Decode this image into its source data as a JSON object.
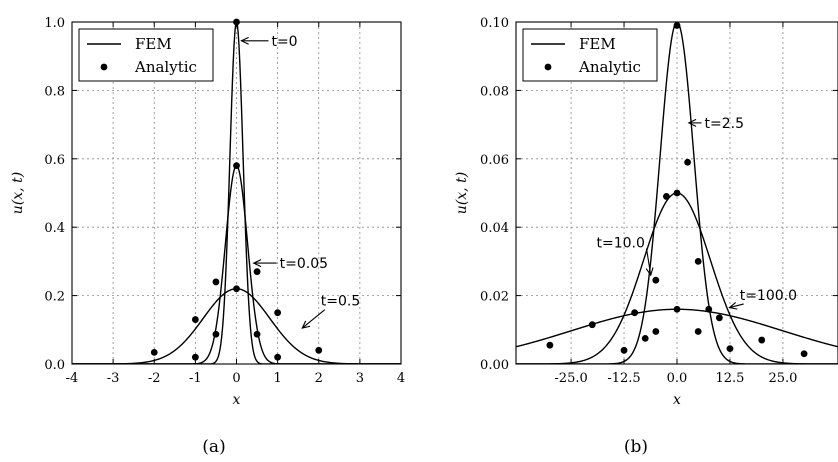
{
  "chart_data": [
    {
      "type": "line",
      "panel": "(a)",
      "xlabel": "x",
      "ylabel": "u(x, t)",
      "xlim": [
        -4,
        4
      ],
      "ylim": [
        0,
        1.0
      ],
      "xticks": [
        -4,
        -3,
        -2,
        -1,
        0,
        1,
        2,
        3,
        4
      ],
      "xtick_labels": [
        "-4",
        "-3",
        "-2",
        "-1",
        "0",
        "1",
        "2",
        "3",
        "4"
      ],
      "yticks": [
        0,
        0.2,
        0.4,
        0.6,
        0.8,
        1.0
      ],
      "ytick_labels": [
        "0.0",
        "0.2",
        "0.4",
        "0.6",
        "0.8",
        "1.0"
      ],
      "grid": true,
      "legend_position": "top-left",
      "legend": [
        {
          "label": "FEM",
          "marker": "line"
        },
        {
          "label": "Analytic",
          "marker": "dot"
        }
      ],
      "series": [
        {
          "label": "t=0",
          "kind": "gaussian",
          "amplitude": 1.0,
          "sigma": 0.16,
          "points": [
            [
              0,
              1.0
            ]
          ]
        },
        {
          "label": "t=0.05",
          "kind": "gaussian",
          "amplitude": 0.58,
          "sigma": 0.27,
          "points": [
            [
              -1,
              0.02
            ],
            [
              -0.5,
              0.087
            ],
            [
              0,
              0.58
            ],
            [
              0.5,
              0.087
            ],
            [
              1,
              0.02
            ]
          ]
        },
        {
          "label": "t=0.5",
          "kind": "gaussian",
          "amplitude": 0.22,
          "sigma": 0.81,
          "points": [
            [
              -2,
              0.034
            ],
            [
              -1,
              0.13
            ],
            [
              -0.5,
              0.24
            ],
            [
              0,
              0.22
            ],
            [
              0.5,
              0.27
            ],
            [
              1,
              0.15
            ],
            [
              2,
              0.04
            ]
          ]
        }
      ],
      "annotations": [
        {
          "text": "t=0",
          "x": 0.85,
          "y": 0.945,
          "arrow_to": [
            0.12,
            0.945
          ]
        },
        {
          "text": "t=0.05",
          "x": 1.05,
          "y": 0.295,
          "arrow_to": [
            0.42,
            0.295
          ]
        },
        {
          "text": "t=0.5",
          "x": 2.05,
          "y": 0.185,
          "arrow_to": [
            1.6,
            0.105
          ]
        }
      ]
    },
    {
      "type": "line",
      "panel": "(b)",
      "xlabel": "x",
      "ylabel": "u(x, t)",
      "xlim": [
        -38,
        38
      ],
      "ylim": [
        0,
        0.1
      ],
      "xticks": [
        -25,
        -12.5,
        0,
        12.5,
        25
      ],
      "xtick_labels": [
        "-25.0",
        "-12.5",
        "0.0",
        "12.5",
        "25.0"
      ],
      "yticks": [
        0,
        0.02,
        0.04,
        0.06,
        0.08,
        0.1
      ],
      "ytick_labels": [
        "0.00",
        "0.02",
        "0.04",
        "0.06",
        "0.08",
        "0.10"
      ],
      "grid": true,
      "legend_position": "top-left",
      "legend": [
        {
          "label": "FEM",
          "marker": "line"
        },
        {
          "label": "Analytic",
          "marker": "dot"
        }
      ],
      "series": [
        {
          "label": "t=2.5",
          "kind": "gaussian",
          "amplitude": 0.1,
          "sigma": 4.0,
          "points": [
            [
              -2.5,
              0.049
            ],
            [
              0,
              0.099
            ],
            [
              2.5,
              0.059
            ],
            [
              5,
              0.0095
            ],
            [
              -5,
              0.0095
            ]
          ]
        },
        {
          "label": "t=10.0",
          "kind": "gaussian",
          "amplitude": 0.05,
          "sigma": 7.9,
          "points": [
            [
              -12.5,
              0.004
            ],
            [
              -7.5,
              0.0075
            ],
            [
              -5,
              0.0245
            ],
            [
              0,
              0.05
            ],
            [
              5,
              0.03
            ],
            [
              7.5,
              0.016
            ],
            [
              12.5,
              0.0045
            ]
          ]
        },
        {
          "label": "t=100.0",
          "kind": "gaussian",
          "amplitude": 0.016,
          "sigma": 25.0,
          "points": [
            [
              -30,
              0.0055
            ],
            [
              -20,
              0.0115
            ],
            [
              -10,
              0.015
            ],
            [
              0,
              0.016
            ],
            [
              10,
              0.0135
            ],
            [
              20,
              0.007
            ],
            [
              30,
              0.003
            ]
          ]
        }
      ],
      "annotations": [
        {
          "text": "t=2.5",
          "x": 6.5,
          "y": 0.0705,
          "arrow_to": [
            2.8,
            0.0705
          ]
        },
        {
          "text": "t=10.0",
          "x": -19,
          "y": 0.0355,
          "arrow_to": [
            -6.2,
            0.026
          ]
        },
        {
          "text": "t=100.0",
          "x": 14.8,
          "y": 0.0202,
          "arrow_to": [
            12.4,
            0.0165
          ]
        }
      ]
    }
  ],
  "captions": [
    "(a)",
    "(b)"
  ]
}
